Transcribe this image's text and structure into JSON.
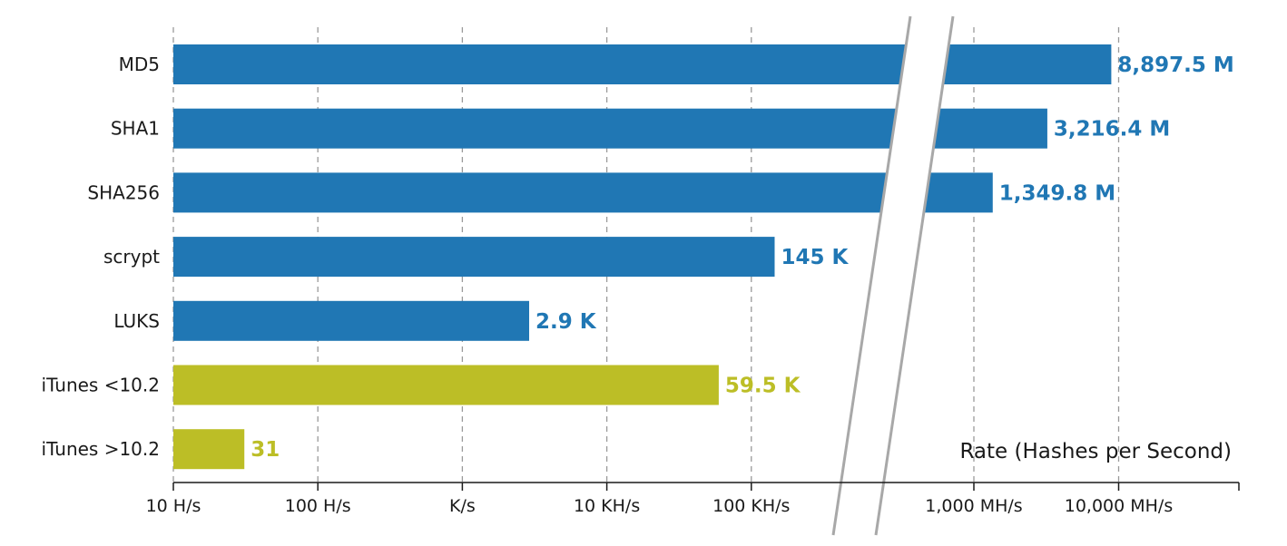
{
  "chart_data": {
    "type": "bar",
    "orientation": "horizontal",
    "xscale": "log",
    "axis_break": true,
    "xlabel": "Rate (Hashes per Second)",
    "xlim": [
      10,
      40000000000
    ],
    "grid": "vertical-dashed",
    "categories": [
      "MD5",
      "SHA1",
      "SHA256",
      "scrypt",
      "LUKS",
      "iTunes <10.2",
      "iTunes >10.2"
    ],
    "values": [
      8897500000,
      3216400000,
      1349800000,
      145000,
      2900,
      59500,
      31
    ],
    "data_labels": [
      "8,897.5 M",
      "3,216.4 M",
      "1,349.8 M",
      "145 K",
      "2.9 K",
      "59.5 K",
      "31"
    ],
    "colors": [
      "#2077b4",
      "#2077b4",
      "#2077b4",
      "#2077b4",
      "#2077b4",
      "#bcbe26",
      "#bcbe26"
    ],
    "ticks": [
      {
        "value": 10,
        "label": "10 H/s"
      },
      {
        "value": 100,
        "label": "100 H/s"
      },
      {
        "value": 1000,
        "label": "K/s"
      },
      {
        "value": 10000,
        "label": "10 KH/s"
      },
      {
        "value": 100000,
        "label": "100 KH/s"
      },
      {
        "value": 1000000000,
        "label": "1,000 MH/s"
      },
      {
        "value": 10000000000,
        "label": "10,000 MH/s"
      }
    ]
  }
}
